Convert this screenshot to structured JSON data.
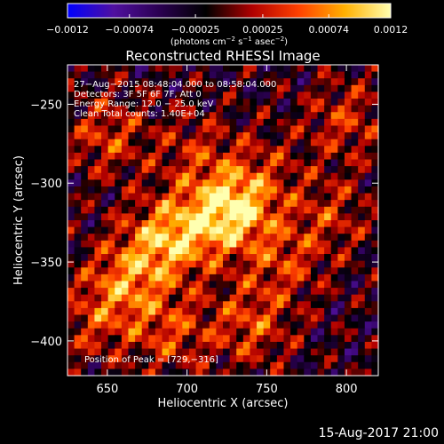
{
  "chart_data": {
    "type": "heatmap",
    "title": "Reconstructed RHESSI Image",
    "xlabel": "Heliocentric X (arcsec)",
    "ylabel": "Heliocentric Y (arcsec)",
    "xlim": [
      625,
      820
    ],
    "ylim": [
      -422,
      -225
    ],
    "xticks": [
      650,
      700,
      750,
      800
    ],
    "yticks": [
      -250,
      -300,
      -350,
      -400
    ],
    "colorbar": {
      "range": [
        -0.0012,
        0.0012
      ],
      "tick_labels": [
        "-0.0012",
        "-0.00074",
        "-0.00025",
        "0.00025",
        "0.00074",
        "0.0012"
      ],
      "tick_values": [
        -0.0012,
        -0.00074,
        -0.00025,
        0.00025,
        0.00074,
        0.0012
      ],
      "label": "(photons cm^-2 s^-1 asec^-2)",
      "colormap": [
        "#0000ff",
        "#5010a0",
        "#2a0050",
        "#000000",
        "#b00000",
        "#ff4000",
        "#ffb000",
        "#ffffb0"
      ]
    },
    "annotations": [
      "27-Aug-2015 08:48:04.000 to 08:58:04.000",
      "Detectors: 3F 5F 6F 7F, Att 0",
      "Energy Range: 12.0 - 25.0 keV",
      "Clean     Total counts: 1.40E+04"
    ],
    "peak_label": "Position of Peak = [729,-316]",
    "peak": [
      729,
      -316
    ],
    "sources": [
      {
        "x": 729,
        "y": -316,
        "amp": 0.0012
      },
      {
        "x": 700,
        "y": -330,
        "amp": 0.0007
      },
      {
        "x": 680,
        "y": -340,
        "amp": 0.00065
      },
      {
        "x": 660,
        "y": -365,
        "amp": 0.0007
      },
      {
        "x": 740,
        "y": -390,
        "amp": 0.0006
      },
      {
        "x": 760,
        "y": -350,
        "amp": 0.0005
      },
      {
        "x": 650,
        "y": -270,
        "amp": 0.00055
      },
      {
        "x": 705,
        "y": -280,
        "amp": 0.0004
      },
      {
        "x": 800,
        "y": -260,
        "amp": 0.0005
      },
      {
        "x": 790,
        "y": -320,
        "amp": 0.00045
      },
      {
        "x": 690,
        "y": -395,
        "amp": 0.00055
      },
      {
        "x": 640,
        "y": -390,
        "amp": 0.0004
      },
      {
        "x": 750,
        "y": -290,
        "amp": 0.0003
      }
    ]
  },
  "footer": {
    "timestamp": "15-Aug-2017 21:00"
  }
}
